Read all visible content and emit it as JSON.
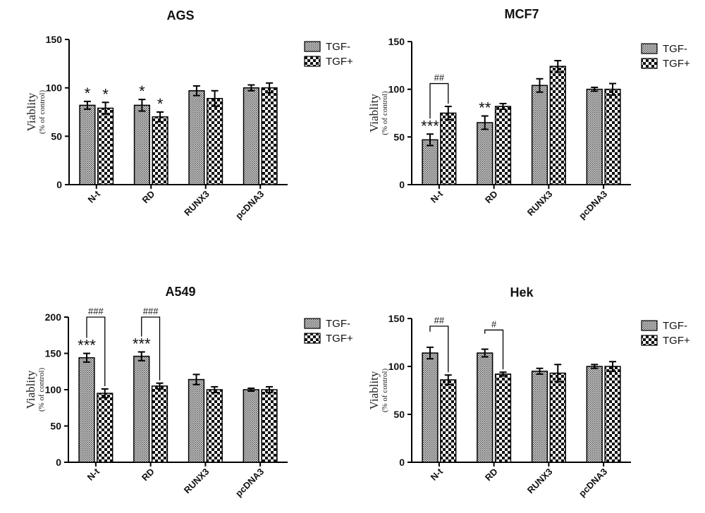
{
  "chart_data": [
    {
      "type": "bar",
      "title": "AGS",
      "ylabel": "Viablity",
      "ylabel_sub": "(% of control)",
      "ylim": [
        0,
        150
      ],
      "yticks": [
        0,
        50,
        100,
        150
      ],
      "categories": [
        "N-t",
        "RD",
        "RUNX3",
        "pcDNA3"
      ],
      "series": [
        {
          "name": "TGF-",
          "values": [
            82,
            82,
            97,
            100
          ],
          "errors": [
            4,
            6,
            5,
            3
          ]
        },
        {
          "name": "TGF+",
          "values": [
            79,
            70,
            89,
            100
          ],
          "errors": [
            6,
            5,
            8,
            5
          ]
        }
      ],
      "annotations": [
        {
          "series": 0,
          "category": 0,
          "text": "*"
        },
        {
          "series": 1,
          "category": 0,
          "text": "*"
        },
        {
          "series": 0,
          "category": 1,
          "text": "*"
        },
        {
          "series": 1,
          "category": 1,
          "text": "*"
        }
      ],
      "brackets": [],
      "legend": "right"
    },
    {
      "type": "bar",
      "title": "MCF7",
      "ylabel": "Viablity",
      "ylabel_sub": "(% of control)",
      "ylim": [
        0,
        150
      ],
      "yticks": [
        0,
        50,
        100,
        150
      ],
      "categories": [
        "N-t",
        "RD",
        "RUNX3",
        "pcDNA3"
      ],
      "series": [
        {
          "name": "TGF-",
          "values": [
            47,
            65,
            104,
            100
          ],
          "errors": [
            6,
            7,
            7,
            2
          ]
        },
        {
          "name": "TGF+",
          "values": [
            75,
            82,
            124,
            100
          ],
          "errors": [
            7,
            3,
            6,
            6
          ]
        }
      ],
      "annotations": [
        {
          "series": 0,
          "category": 0,
          "text": "***"
        },
        {
          "series": 0,
          "category": 1,
          "text": "**"
        }
      ],
      "brackets": [
        {
          "category": 0,
          "text": "##",
          "level": 106
        }
      ],
      "legend": "right"
    },
    {
      "type": "bar",
      "title": "A549",
      "ylabel": "Viablity",
      "ylabel_sub": "(% of control)",
      "ylim": [
        0,
        200
      ],
      "yticks": [
        0,
        50,
        100,
        150,
        200
      ],
      "categories": [
        "N-t",
        "RD",
        "RUNX3",
        "pcDNA3"
      ],
      "series": [
        {
          "name": "TGF-",
          "values": [
            144,
            146,
            114,
            100
          ],
          "errors": [
            6,
            6,
            7,
            2
          ]
        },
        {
          "name": "TGF+",
          "values": [
            95,
            105,
            100,
            100
          ],
          "errors": [
            6,
            4,
            4,
            4
          ]
        }
      ],
      "annotations": [
        {
          "series": 0,
          "category": 0,
          "text": "***"
        },
        {
          "series": 0,
          "category": 1,
          "text": "***"
        }
      ],
      "brackets": [
        {
          "category": 0,
          "text": "###",
          "level": 200
        },
        {
          "category": 1,
          "text": "###",
          "level": 200
        }
      ],
      "legend": "right"
    },
    {
      "type": "bar",
      "title": "Hek",
      "ylabel": "Viablity",
      "ylabel_sub": "(% of control)",
      "ylim": [
        0,
        150
      ],
      "yticks": [
        0,
        50,
        100,
        150
      ],
      "categories": [
        "N-t",
        "RD",
        "RUNX3",
        "pcDNA3"
      ],
      "series": [
        {
          "name": "TGF-",
          "values": [
            114,
            114,
            95,
            100
          ],
          "errors": [
            6,
            4,
            3,
            2
          ]
        },
        {
          "name": "TGF+",
          "values": [
            86,
            92,
            93,
            100
          ],
          "errors": [
            5,
            2,
            9,
            5
          ]
        }
      ],
      "annotations": [],
      "brackets": [
        {
          "category": 0,
          "text": "##",
          "level": 142
        },
        {
          "category": 1,
          "text": "#",
          "level": 138
        }
      ],
      "legend": "right"
    }
  ]
}
